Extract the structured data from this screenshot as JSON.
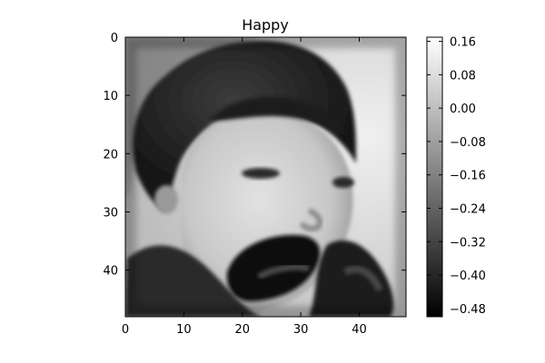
{
  "chart_data": {
    "type": "heatmap",
    "title": "Happy",
    "xlabel": "",
    "ylabel": "",
    "x_ticks": [
      "0",
      "10",
      "20",
      "30",
      "40"
    ],
    "y_ticks": [
      "0",
      "10",
      "20",
      "30",
      "40"
    ],
    "xlim": [
      0,
      48
    ],
    "ylim": [
      48,
      0
    ],
    "colormap": "gray",
    "colorbar": {
      "ticks": [
        "0.16",
        "0.08",
        "0.00",
        "−0.08",
        "−0.16",
        "−0.24",
        "−0.32",
        "−0.40",
        "−0.48"
      ],
      "range": [
        -0.5,
        0.17
      ]
    }
  }
}
